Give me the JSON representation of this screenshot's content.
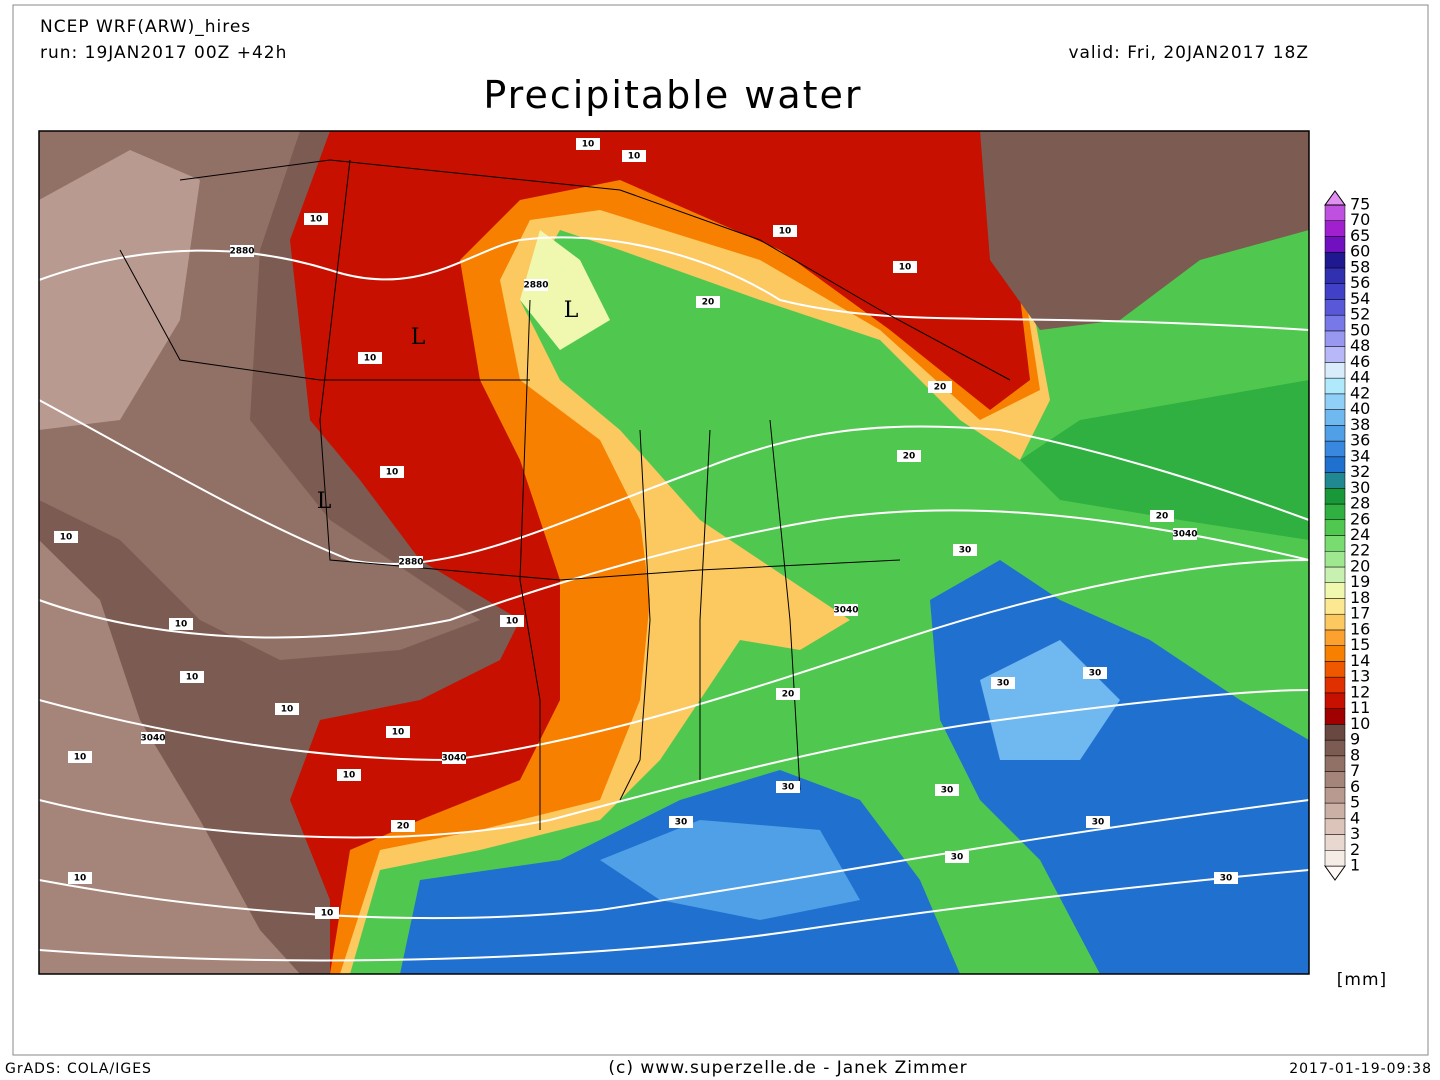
{
  "header": {
    "model": "NCEP WRF(ARW)_hires",
    "run": "run: 19JAN2017 00Z +42h",
    "valid": "valid: Fri, 20JAN2017 18Z",
    "title": "Precipitable water"
  },
  "colorbar": {
    "labels": [
      "1",
      "2",
      "3",
      "4",
      "5",
      "6",
      "7",
      "8",
      "9",
      "10",
      "11",
      "12",
      "13",
      "14",
      "15",
      "16",
      "17",
      "18",
      "19",
      "20",
      "22",
      "24",
      "26",
      "28",
      "30",
      "32",
      "34",
      "36",
      "38",
      "40",
      "42",
      "44",
      "46",
      "48",
      "50",
      "52",
      "54",
      "56",
      "58",
      "60",
      "65",
      "70",
      "75"
    ],
    "colors": [
      "#fff8f4",
      "#f5ece6",
      "#e8d8d0",
      "#dcc4bb",
      "#cbb0a6",
      "#b89a90",
      "#a5857a",
      "#917066",
      "#7c5b52",
      "#684840",
      "#a00000",
      "#c81000",
      "#e03000",
      "#f05800",
      "#f88000",
      "#fca030",
      "#fcc860",
      "#fce890",
      "#f0f8b0",
      "#c8f0b0",
      "#a0e890",
      "#78dc70",
      "#50c850",
      "#30b040",
      "#189838",
      "#208890",
      "#2070d0",
      "#3888e0",
      "#50a0e8",
      "#70b8f0",
      "#90d0f8",
      "#b0e8fc",
      "#d8ecfc",
      "#b8b8f8",
      "#9898f0",
      "#7878e8",
      "#5858d8",
      "#4040c8",
      "#3030b0",
      "#201890",
      "#7010c0",
      "#a020d0",
      "#c050e0",
      "#e090f0"
    ],
    "unit": "[mm]"
  },
  "map": {
    "contour_labels": [
      "2880",
      "2880",
      "2880",
      "3040",
      "3040",
      "3040",
      "3040",
      "10",
      "10",
      "10",
      "10",
      "10",
      "10",
      "10",
      "10",
      "10",
      "10",
      "10",
      "10",
      "10",
      "10",
      "10",
      "10",
      "10",
      "20",
      "20",
      "20",
      "20",
      "20",
      "20",
      "30",
      "30",
      "30",
      "30",
      "30",
      "30",
      "30",
      "30",
      "30"
    ],
    "lows": [
      "L",
      "L",
      "L"
    ]
  },
  "footer": {
    "left": "GrADS: COLA/IGES",
    "center": "(c) www.superzelle.de - Janek Zimmer",
    "right": "2017-01-19-09:38"
  }
}
